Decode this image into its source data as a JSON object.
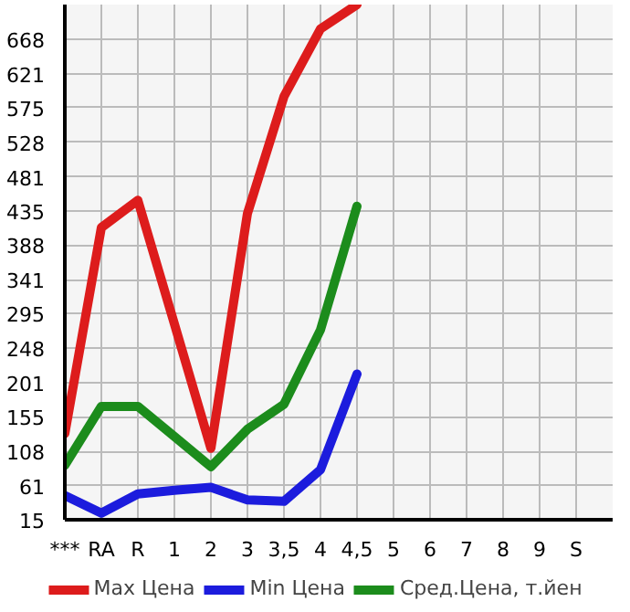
{
  "chart_data": {
    "type": "line",
    "categories": [
      "***",
      "RA",
      "R",
      "1",
      "2",
      "3",
      "3,5",
      "4",
      "4,5",
      "5",
      "6",
      "7",
      "8",
      "9",
      "S"
    ],
    "ylim": [
      15,
      715
    ],
    "yticks": [
      15,
      61,
      108,
      155,
      201,
      248,
      295,
      341,
      388,
      435,
      481,
      528,
      575,
      621,
      668
    ],
    "series": [
      {
        "name": "Max Цена",
        "color": "#dd1c1c",
        "values": [
          132,
          412,
          449,
          281,
          112,
          431,
          590,
          682,
          715,
          null,
          null,
          null,
          null,
          null,
          null
        ]
      },
      {
        "name": "Min Цена",
        "color": "#1c1cdd",
        "values": [
          48,
          24,
          50,
          55,
          59,
          42,
          40,
          83,
          213,
          null,
          null,
          null,
          null,
          null,
          null
        ]
      },
      {
        "name": "Сред.Цена, т.йен",
        "color": "#1c8c1c",
        "values": [
          89,
          169,
          169,
          128,
          87,
          138,
          172,
          273,
          441,
          null,
          null,
          null,
          null,
          null,
          null
        ]
      }
    ],
    "grid": true,
    "legend": "bottom",
    "marker": "none",
    "line_style": "solid"
  }
}
